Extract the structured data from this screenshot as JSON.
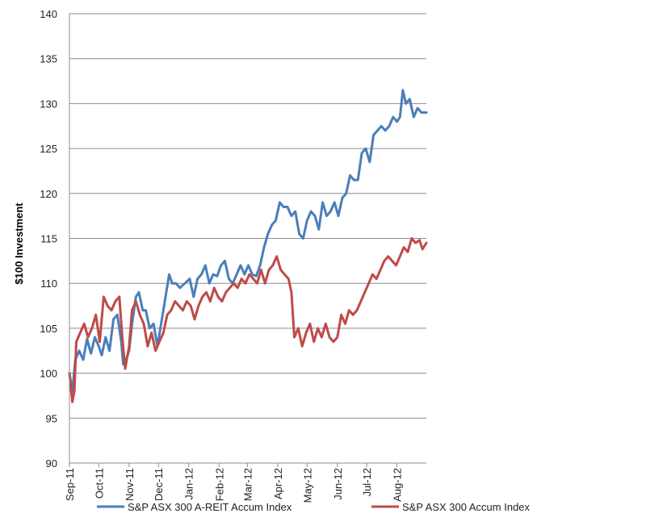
{
  "chart_data": {
    "type": "line",
    "title": "",
    "xlabel": "",
    "ylabel": "$100 Investment",
    "ylim": [
      90,
      140
    ],
    "yticks": [
      90,
      95,
      100,
      105,
      110,
      115,
      120,
      125,
      130,
      135,
      140
    ],
    "grid": "horizontal",
    "legend_position": "bottom",
    "x_start": "2011-09-01",
    "x_end": "2012-08-31",
    "x_ticks": [
      {
        "label": "Sep-11",
        "date": "2011-09-01"
      },
      {
        "label": "Oct-11",
        "date": "2011-10-01"
      },
      {
        "label": "Nov-11",
        "date": "2011-11-01"
      },
      {
        "label": "Dec-11",
        "date": "2011-12-01"
      },
      {
        "label": "Jan-12",
        "date": "2012-01-01"
      },
      {
        "label": "Feb-12",
        "date": "2012-02-01"
      },
      {
        "label": "Mar-12",
        "date": "2012-03-01"
      },
      {
        "label": "Apr-12",
        "date": "2012-04-01"
      },
      {
        "label": "May-12",
        "date": "2012-05-01"
      },
      {
        "label": "Jun-12",
        "date": "2012-06-01"
      },
      {
        "label": "Jul-12",
        "date": "2012-07-01"
      },
      {
        "label": "Aug-12",
        "date": "2012-08-01"
      }
    ],
    "series": [
      {
        "name": "S&P ASX 300 A-REIT Accum Index",
        "color": "#4a7ebb",
        "points": [
          [
            "2011-09-01",
            100.0
          ],
          [
            "2011-09-04",
            98.0
          ],
          [
            "2011-09-07",
            101.5
          ],
          [
            "2011-09-11",
            102.5
          ],
          [
            "2011-09-15",
            101.5
          ],
          [
            "2011-09-19",
            103.8
          ],
          [
            "2011-09-23",
            102.2
          ],
          [
            "2011-09-27",
            104.0
          ],
          [
            "2011-10-01",
            103.0
          ],
          [
            "2011-10-04",
            102.0
          ],
          [
            "2011-10-08",
            104.0
          ],
          [
            "2011-10-12",
            102.5
          ],
          [
            "2011-10-16",
            106.0
          ],
          [
            "2011-10-20",
            106.5
          ],
          [
            "2011-10-24",
            103.5
          ],
          [
            "2011-10-26",
            101.0
          ],
          [
            "2011-10-29",
            101.5
          ],
          [
            "2011-11-01",
            102.5
          ],
          [
            "2011-11-04",
            105.5
          ],
          [
            "2011-11-08",
            108.5
          ],
          [
            "2011-11-11",
            109.0
          ],
          [
            "2011-11-15",
            107.0
          ],
          [
            "2011-11-18",
            107.0
          ],
          [
            "2011-11-22",
            105.0
          ],
          [
            "2011-11-26",
            105.5
          ],
          [
            "2011-11-30",
            103.0
          ],
          [
            "2011-12-03",
            105.0
          ],
          [
            "2011-12-06",
            107.0
          ],
          [
            "2011-12-09",
            109.0
          ],
          [
            "2011-12-12",
            111.0
          ],
          [
            "2011-12-15",
            110.0
          ],
          [
            "2011-12-19",
            110.0
          ],
          [
            "2011-12-23",
            109.5
          ],
          [
            "2011-12-28",
            110.0
          ],
          [
            "2012-01-02",
            110.5
          ],
          [
            "2012-01-06",
            108.5
          ],
          [
            "2012-01-10",
            110.5
          ],
          [
            "2012-01-14",
            111.0
          ],
          [
            "2012-01-18",
            112.0
          ],
          [
            "2012-01-22",
            110.0
          ],
          [
            "2012-01-26",
            111.0
          ],
          [
            "2012-01-30",
            110.8
          ],
          [
            "2012-02-03",
            112.0
          ],
          [
            "2012-02-07",
            112.5
          ],
          [
            "2012-02-11",
            110.5
          ],
          [
            "2012-02-15",
            110.0
          ],
          [
            "2012-02-19",
            111.0
          ],
          [
            "2012-02-23",
            112.0
          ],
          [
            "2012-02-27",
            111.0
          ],
          [
            "2012-03-02",
            112.0
          ],
          [
            "2012-03-06",
            111.0
          ],
          [
            "2012-03-10",
            110.8
          ],
          [
            "2012-03-14",
            112.0
          ],
          [
            "2012-03-18",
            114.0
          ],
          [
            "2012-03-22",
            115.5
          ],
          [
            "2012-03-26",
            116.5
          ],
          [
            "2012-03-30",
            117.0
          ],
          [
            "2012-04-03",
            119.0
          ],
          [
            "2012-04-07",
            118.5
          ],
          [
            "2012-04-11",
            118.5
          ],
          [
            "2012-04-15",
            117.5
          ],
          [
            "2012-04-19",
            118.0
          ],
          [
            "2012-04-23",
            115.5
          ],
          [
            "2012-04-27",
            115.0
          ],
          [
            "2012-05-01",
            117.0
          ],
          [
            "2012-05-05",
            118.0
          ],
          [
            "2012-05-09",
            117.5
          ],
          [
            "2012-05-13",
            116.0
          ],
          [
            "2012-05-17",
            119.0
          ],
          [
            "2012-05-21",
            117.5
          ],
          [
            "2012-05-25",
            118.0
          ],
          [
            "2012-05-29",
            119.0
          ],
          [
            "2012-06-02",
            117.5
          ],
          [
            "2012-06-06",
            119.5
          ],
          [
            "2012-06-10",
            120.0
          ],
          [
            "2012-06-14",
            122.0
          ],
          [
            "2012-06-18",
            121.5
          ],
          [
            "2012-06-22",
            121.5
          ],
          [
            "2012-06-26",
            124.5
          ],
          [
            "2012-06-30",
            125.0
          ],
          [
            "2012-07-04",
            123.5
          ],
          [
            "2012-07-08",
            126.5
          ],
          [
            "2012-07-12",
            127.0
          ],
          [
            "2012-07-16",
            127.5
          ],
          [
            "2012-07-20",
            127.0
          ],
          [
            "2012-07-24",
            127.5
          ],
          [
            "2012-07-28",
            128.5
          ],
          [
            "2012-08-01",
            128.0
          ],
          [
            "2012-08-04",
            128.5
          ],
          [
            "2012-08-07",
            131.5
          ],
          [
            "2012-08-10",
            130.0
          ],
          [
            "2012-08-14",
            130.5
          ],
          [
            "2012-08-18",
            128.5
          ],
          [
            "2012-08-22",
            129.5
          ],
          [
            "2012-08-26",
            129.0
          ],
          [
            "2012-08-31",
            129.0
          ]
        ]
      },
      {
        "name": "S&P ASX 300 Accum Index",
        "color": "#be4b48",
        "points": [
          [
            "2011-09-01",
            100.0
          ],
          [
            "2011-09-04",
            96.8
          ],
          [
            "2011-09-06",
            98.0
          ],
          [
            "2011-09-08",
            103.5
          ],
          [
            "2011-09-12",
            104.5
          ],
          [
            "2011-09-16",
            105.5
          ],
          [
            "2011-09-20",
            104.0
          ],
          [
            "2011-09-24",
            105.0
          ],
          [
            "2011-09-28",
            106.5
          ],
          [
            "2011-10-02",
            103.5
          ],
          [
            "2011-10-06",
            108.5
          ],
          [
            "2011-10-10",
            107.5
          ],
          [
            "2011-10-14",
            107.0
          ],
          [
            "2011-10-18",
            108.0
          ],
          [
            "2011-10-22",
            108.5
          ],
          [
            "2011-10-25",
            104.0
          ],
          [
            "2011-10-28",
            100.5
          ],
          [
            "2011-11-01",
            103.0
          ],
          [
            "2011-11-04",
            107.0
          ],
          [
            "2011-11-08",
            108.0
          ],
          [
            "2011-11-12",
            106.5
          ],
          [
            "2011-11-16",
            105.5
          ],
          [
            "2011-11-20",
            103.0
          ],
          [
            "2011-11-24",
            104.5
          ],
          [
            "2011-11-28",
            102.5
          ],
          [
            "2011-12-02",
            103.5
          ],
          [
            "2011-12-06",
            104.5
          ],
          [
            "2011-12-10",
            106.5
          ],
          [
            "2011-12-14",
            107.0
          ],
          [
            "2011-12-18",
            108.0
          ],
          [
            "2011-12-22",
            107.5
          ],
          [
            "2011-12-26",
            107.0
          ],
          [
            "2011-12-30",
            108.0
          ],
          [
            "2012-01-03",
            107.5
          ],
          [
            "2012-01-07",
            106.0
          ],
          [
            "2012-01-11",
            107.5
          ],
          [
            "2012-01-15",
            108.5
          ],
          [
            "2012-01-19",
            109.0
          ],
          [
            "2012-01-23",
            108.0
          ],
          [
            "2012-01-27",
            109.5
          ],
          [
            "2012-01-31",
            108.5
          ],
          [
            "2012-02-04",
            108.0
          ],
          [
            "2012-02-08",
            109.0
          ],
          [
            "2012-02-12",
            109.5
          ],
          [
            "2012-02-16",
            110.0
          ],
          [
            "2012-02-20",
            109.5
          ],
          [
            "2012-02-24",
            110.5
          ],
          [
            "2012-02-28",
            110.0
          ],
          [
            "2012-03-03",
            111.0
          ],
          [
            "2012-03-07",
            110.5
          ],
          [
            "2012-03-11",
            110.0
          ],
          [
            "2012-03-15",
            111.5
          ],
          [
            "2012-03-19",
            110.0
          ],
          [
            "2012-03-23",
            111.5
          ],
          [
            "2012-03-27",
            112.0
          ],
          [
            "2012-03-31",
            113.0
          ],
          [
            "2012-04-04",
            111.5
          ],
          [
            "2012-04-08",
            111.0
          ],
          [
            "2012-04-12",
            110.5
          ],
          [
            "2012-04-15",
            109.0
          ],
          [
            "2012-04-18",
            104.0
          ],
          [
            "2012-04-22",
            105.0
          ],
          [
            "2012-04-26",
            103.0
          ],
          [
            "2012-04-30",
            104.5
          ],
          [
            "2012-05-04",
            105.5
          ],
          [
            "2012-05-08",
            103.5
          ],
          [
            "2012-05-12",
            105.0
          ],
          [
            "2012-05-16",
            104.0
          ],
          [
            "2012-05-20",
            105.5
          ],
          [
            "2012-05-24",
            104.0
          ],
          [
            "2012-05-28",
            103.5
          ],
          [
            "2012-06-01",
            104.0
          ],
          [
            "2012-06-05",
            106.5
          ],
          [
            "2012-06-09",
            105.5
          ],
          [
            "2012-06-13",
            107.0
          ],
          [
            "2012-06-17",
            106.5
          ],
          [
            "2012-06-21",
            107.0
          ],
          [
            "2012-06-25",
            108.0
          ],
          [
            "2012-06-29",
            109.0
          ],
          [
            "2012-07-03",
            110.0
          ],
          [
            "2012-07-07",
            111.0
          ],
          [
            "2012-07-11",
            110.5
          ],
          [
            "2012-07-15",
            111.5
          ],
          [
            "2012-07-19",
            112.5
          ],
          [
            "2012-07-23",
            113.0
          ],
          [
            "2012-07-27",
            112.5
          ],
          [
            "2012-07-31",
            112.0
          ],
          [
            "2012-08-04",
            113.0
          ],
          [
            "2012-08-08",
            114.0
          ],
          [
            "2012-08-12",
            113.5
          ],
          [
            "2012-08-16",
            115.0
          ],
          [
            "2012-08-20",
            114.5
          ],
          [
            "2012-08-24",
            114.8
          ],
          [
            "2012-08-27",
            113.8
          ],
          [
            "2012-08-31",
            114.5
          ]
        ]
      }
    ]
  }
}
